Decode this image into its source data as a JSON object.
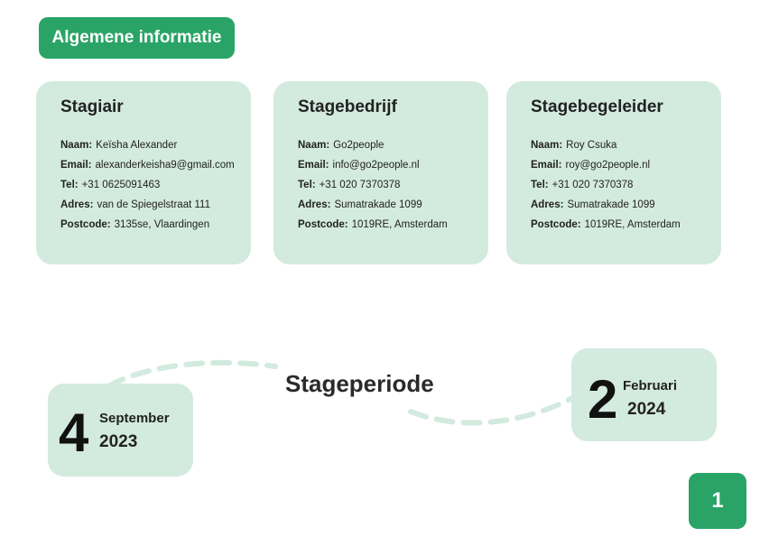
{
  "section_title": "Algemene informatie",
  "cards": [
    {
      "title": "Stagiair",
      "rows": [
        {
          "label": "Naam:",
          "value": "Keïsha Alexander"
        },
        {
          "label": "Email:",
          "value": "alexanderkeisha9@gmail.com"
        },
        {
          "label": "Tel:",
          "value": "+31 0625091463"
        },
        {
          "label": "Adres:",
          "value": "van de Spiegelstraat 111"
        },
        {
          "label": "Postcode:",
          "value": "3135se, Vlaardingen"
        }
      ]
    },
    {
      "title": "Stagebedrijf",
      "rows": [
        {
          "label": "Naam:",
          "value": "Go2people"
        },
        {
          "label": "Email:",
          "value": "info@go2people.nl"
        },
        {
          "label": "Tel:",
          "value": "+31 020 7370378"
        },
        {
          "label": "Adres:",
          "value": "Sumatrakade 1099"
        },
        {
          "label": "Postcode:",
          "value": "1019RE, Amsterdam"
        }
      ]
    },
    {
      "title": "Stagebegeleider",
      "rows": [
        {
          "label": "Naam:",
          "value": "Roy Csuka"
        },
        {
          "label": "Email:",
          "value": "roy@go2people.nl"
        },
        {
          "label": "Tel:",
          "value": "+31 020 7370378"
        },
        {
          "label": "Adres:",
          "value": "Sumatrakade 1099"
        },
        {
          "label": "Postcode:",
          "value": "1019RE, Amsterdam"
        }
      ]
    }
  ],
  "period": {
    "title": "Stageperiode",
    "start": {
      "day": "4",
      "month": "September",
      "year": "2023"
    },
    "end": {
      "day": "2",
      "month": "Februari",
      "year": "2024"
    }
  },
  "page_number": "1",
  "colors": {
    "accent": "#2aa466",
    "card_bg": "#d3eadf",
    "dash": "#d3eadf"
  }
}
